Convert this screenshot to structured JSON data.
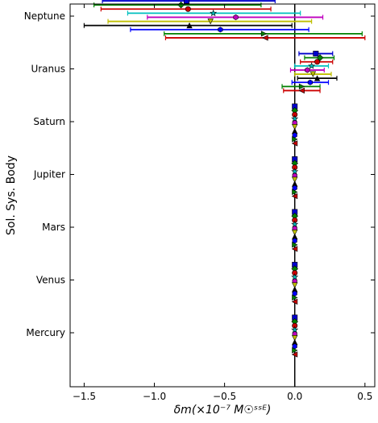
{
  "chart_data": {
    "type": "scatter",
    "xlabel": "δm(×10⁻⁷ M☉ˢˢᴱ)",
    "ylabel": "Sol. Sys. Body",
    "xlim": [
      -1.6,
      0.57
    ],
    "xticks": [
      -1.5,
      -1.0,
      -0.5,
      0.0,
      0.5
    ],
    "xtick_labels": [
      "−1.5",
      "−1.0",
      "−0.5",
      "0.0",
      "0.5"
    ],
    "categories": [
      "Neptune",
      "Uranus",
      "Saturn",
      "Jupiter",
      "Mars",
      "Venus",
      "Mercury"
    ],
    "grid": false,
    "vertical_reference_line_x": 0.0,
    "series": [
      {
        "color": "#0000cc",
        "marker": "square",
        "values": [
          {
            "body": "Neptune",
            "x": -0.77,
            "err_low": -1.37,
            "err_high": -0.14
          },
          {
            "body": "Uranus",
            "x": 0.15,
            "err_low": 0.03,
            "err_high": 0.27
          },
          {
            "body": "Saturn",
            "x": 0.0,
            "err_low": 0.0,
            "err_high": 0.0
          },
          {
            "body": "Jupiter",
            "x": 0.0,
            "err_low": 0.0,
            "err_high": 0.0
          },
          {
            "body": "Mars",
            "x": 0.0,
            "err_low": 0.0,
            "err_high": 0.0
          },
          {
            "body": "Venus",
            "x": 0.0,
            "err_low": 0.0,
            "err_high": 0.0
          },
          {
            "body": "Mercury",
            "x": 0.0,
            "err_low": 0.0,
            "err_high": 0.0
          }
        ]
      },
      {
        "color": "#008000",
        "marker": "diamond",
        "values": [
          {
            "body": "Neptune",
            "x": -0.81,
            "err_low": -1.43,
            "err_high": -0.24
          },
          {
            "body": "Uranus",
            "x": 0.18,
            "err_low": 0.07,
            "err_high": 0.28
          },
          {
            "body": "Saturn",
            "x": 0.0,
            "err_low": 0.0,
            "err_high": 0.0
          },
          {
            "body": "Jupiter",
            "x": 0.0,
            "err_low": 0.0,
            "err_high": 0.0
          },
          {
            "body": "Mars",
            "x": 0.0,
            "err_low": 0.0,
            "err_high": 0.0
          },
          {
            "body": "Venus",
            "x": 0.0,
            "err_low": 0.0,
            "err_high": 0.0
          },
          {
            "body": "Mercury",
            "x": 0.0,
            "err_low": 0.0,
            "err_high": 0.0
          }
        ]
      },
      {
        "color": "#cc0000",
        "marker": "circle",
        "values": [
          {
            "body": "Neptune",
            "x": -0.76,
            "err_low": -1.38,
            "err_high": -0.17
          },
          {
            "body": "Uranus",
            "x": 0.16,
            "err_low": 0.04,
            "err_high": 0.27
          },
          {
            "body": "Saturn",
            "x": 0.0,
            "err_low": 0.0,
            "err_high": 0.0
          },
          {
            "body": "Jupiter",
            "x": 0.0,
            "err_low": 0.0,
            "err_high": 0.0
          },
          {
            "body": "Mars",
            "x": 0.0,
            "err_low": 0.0,
            "err_high": 0.0
          },
          {
            "body": "Venus",
            "x": 0.0,
            "err_low": 0.0,
            "err_high": 0.0
          },
          {
            "body": "Mercury",
            "x": 0.0,
            "err_low": 0.0,
            "err_high": 0.0
          }
        ]
      },
      {
        "color": "#00bfbf",
        "marker": "star",
        "values": [
          {
            "body": "Neptune",
            "x": -0.58,
            "err_low": -1.19,
            "err_high": 0.04
          },
          {
            "body": "Uranus",
            "x": 0.12,
            "err_low": 0.0,
            "err_high": 0.24
          },
          {
            "body": "Saturn",
            "x": 0.0,
            "err_low": 0.0,
            "err_high": 0.0
          },
          {
            "body": "Jupiter",
            "x": 0.0,
            "err_low": 0.0,
            "err_high": 0.0
          },
          {
            "body": "Mars",
            "x": 0.0,
            "err_low": 0.0,
            "err_high": 0.0
          },
          {
            "body": "Venus",
            "x": 0.0,
            "err_low": 0.0,
            "err_high": 0.0
          },
          {
            "body": "Mercury",
            "x": 0.0,
            "err_low": 0.0,
            "err_high": 0.0
          }
        ]
      },
      {
        "color": "#bf00bf",
        "marker": "hexagon",
        "values": [
          {
            "body": "Neptune",
            "x": -0.42,
            "err_low": -1.05,
            "err_high": 0.2
          },
          {
            "body": "Uranus",
            "x": 0.09,
            "err_low": -0.03,
            "err_high": 0.21
          },
          {
            "body": "Saturn",
            "x": 0.0,
            "err_low": 0.0,
            "err_high": 0.0
          },
          {
            "body": "Jupiter",
            "x": 0.0,
            "err_low": 0.0,
            "err_high": 0.0
          },
          {
            "body": "Mars",
            "x": 0.0,
            "err_low": 0.0,
            "err_high": 0.0
          },
          {
            "body": "Venus",
            "x": 0.0,
            "err_low": 0.0,
            "err_high": 0.0
          },
          {
            "body": "Mercury",
            "x": 0.0,
            "err_low": 0.0,
            "err_high": 0.0
          }
        ]
      },
      {
        "color": "#bfbf00",
        "marker": "triangle-down",
        "values": [
          {
            "body": "Neptune",
            "x": -0.6,
            "err_low": -1.33,
            "err_high": 0.12
          },
          {
            "body": "Uranus",
            "x": 0.13,
            "err_low": 0.0,
            "err_high": 0.26
          },
          {
            "body": "Saturn",
            "x": 0.0,
            "err_low": 0.0,
            "err_high": 0.0
          },
          {
            "body": "Jupiter",
            "x": 0.0,
            "err_low": 0.0,
            "err_high": 0.0
          },
          {
            "body": "Mars",
            "x": 0.0,
            "err_low": 0.0,
            "err_high": 0.0
          },
          {
            "body": "Venus",
            "x": 0.0,
            "err_low": 0.0,
            "err_high": 0.0
          },
          {
            "body": "Mercury",
            "x": 0.0,
            "err_low": 0.0,
            "err_high": 0.0
          }
        ]
      },
      {
        "color": "#000000",
        "marker": "triangle-up",
        "values": [
          {
            "body": "Neptune",
            "x": -0.75,
            "err_low": -1.5,
            "err_high": -0.02
          },
          {
            "body": "Uranus",
            "x": 0.16,
            "err_low": 0.02,
            "err_high": 0.3
          },
          {
            "body": "Saturn",
            "x": 0.0,
            "err_low": 0.0,
            "err_high": 0.0
          },
          {
            "body": "Jupiter",
            "x": 0.0,
            "err_low": 0.0,
            "err_high": 0.0
          },
          {
            "body": "Mars",
            "x": 0.0,
            "err_low": 0.0,
            "err_high": 0.0
          },
          {
            "body": "Venus",
            "x": 0.0,
            "err_low": 0.0,
            "err_high": 0.0
          },
          {
            "body": "Mercury",
            "x": 0.0,
            "err_low": 0.0,
            "err_high": 0.0
          }
        ]
      },
      {
        "color": "#0000ff",
        "marker": "hexagon",
        "values": [
          {
            "body": "Neptune",
            "x": -0.53,
            "err_low": -1.17,
            "err_high": 0.1
          },
          {
            "body": "Uranus",
            "x": 0.11,
            "err_low": -0.02,
            "err_high": 0.24
          },
          {
            "body": "Saturn",
            "x": 0.0,
            "err_low": 0.0,
            "err_high": 0.0
          },
          {
            "body": "Jupiter",
            "x": 0.0,
            "err_low": 0.0,
            "err_high": 0.0
          },
          {
            "body": "Mars",
            "x": 0.0,
            "err_low": 0.0,
            "err_high": 0.0
          },
          {
            "body": "Venus",
            "x": 0.0,
            "err_low": 0.0,
            "err_high": 0.0
          },
          {
            "body": "Mercury",
            "x": 0.0,
            "err_low": 0.0,
            "err_high": 0.0
          }
        ]
      },
      {
        "color": "#008000",
        "marker": "triangle-right",
        "values": [
          {
            "body": "Neptune",
            "x": -0.22,
            "err_low": -0.93,
            "err_high": 0.48
          },
          {
            "body": "Uranus",
            "x": 0.05,
            "err_low": -0.09,
            "err_high": 0.18
          },
          {
            "body": "Saturn",
            "x": 0.0,
            "err_low": 0.0,
            "err_high": 0.0
          },
          {
            "body": "Jupiter",
            "x": 0.0,
            "err_low": 0.0,
            "err_high": 0.0
          },
          {
            "body": "Mars",
            "x": 0.0,
            "err_low": 0.0,
            "err_high": 0.0
          },
          {
            "body": "Venus",
            "x": 0.0,
            "err_low": 0.0,
            "err_high": 0.0
          },
          {
            "body": "Mercury",
            "x": 0.0,
            "err_low": 0.0,
            "err_high": 0.0
          }
        ]
      },
      {
        "color": "#cc0000",
        "marker": "triangle-left",
        "values": [
          {
            "body": "Neptune",
            "x": -0.21,
            "err_low": -0.92,
            "err_high": 0.5
          },
          {
            "body": "Uranus",
            "x": 0.05,
            "err_low": -0.08,
            "err_high": 0.18
          },
          {
            "body": "Saturn",
            "x": 0.0,
            "err_low": 0.0,
            "err_high": 0.0
          },
          {
            "body": "Jupiter",
            "x": 0.0,
            "err_low": 0.0,
            "err_high": 0.0
          },
          {
            "body": "Mars",
            "x": 0.0,
            "err_low": 0.0,
            "err_high": 0.0
          },
          {
            "body": "Venus",
            "x": 0.0,
            "err_low": 0.0,
            "err_high": 0.0
          },
          {
            "body": "Mercury",
            "x": 0.0,
            "err_low": 0.0,
            "err_high": 0.0
          }
        ]
      }
    ]
  }
}
